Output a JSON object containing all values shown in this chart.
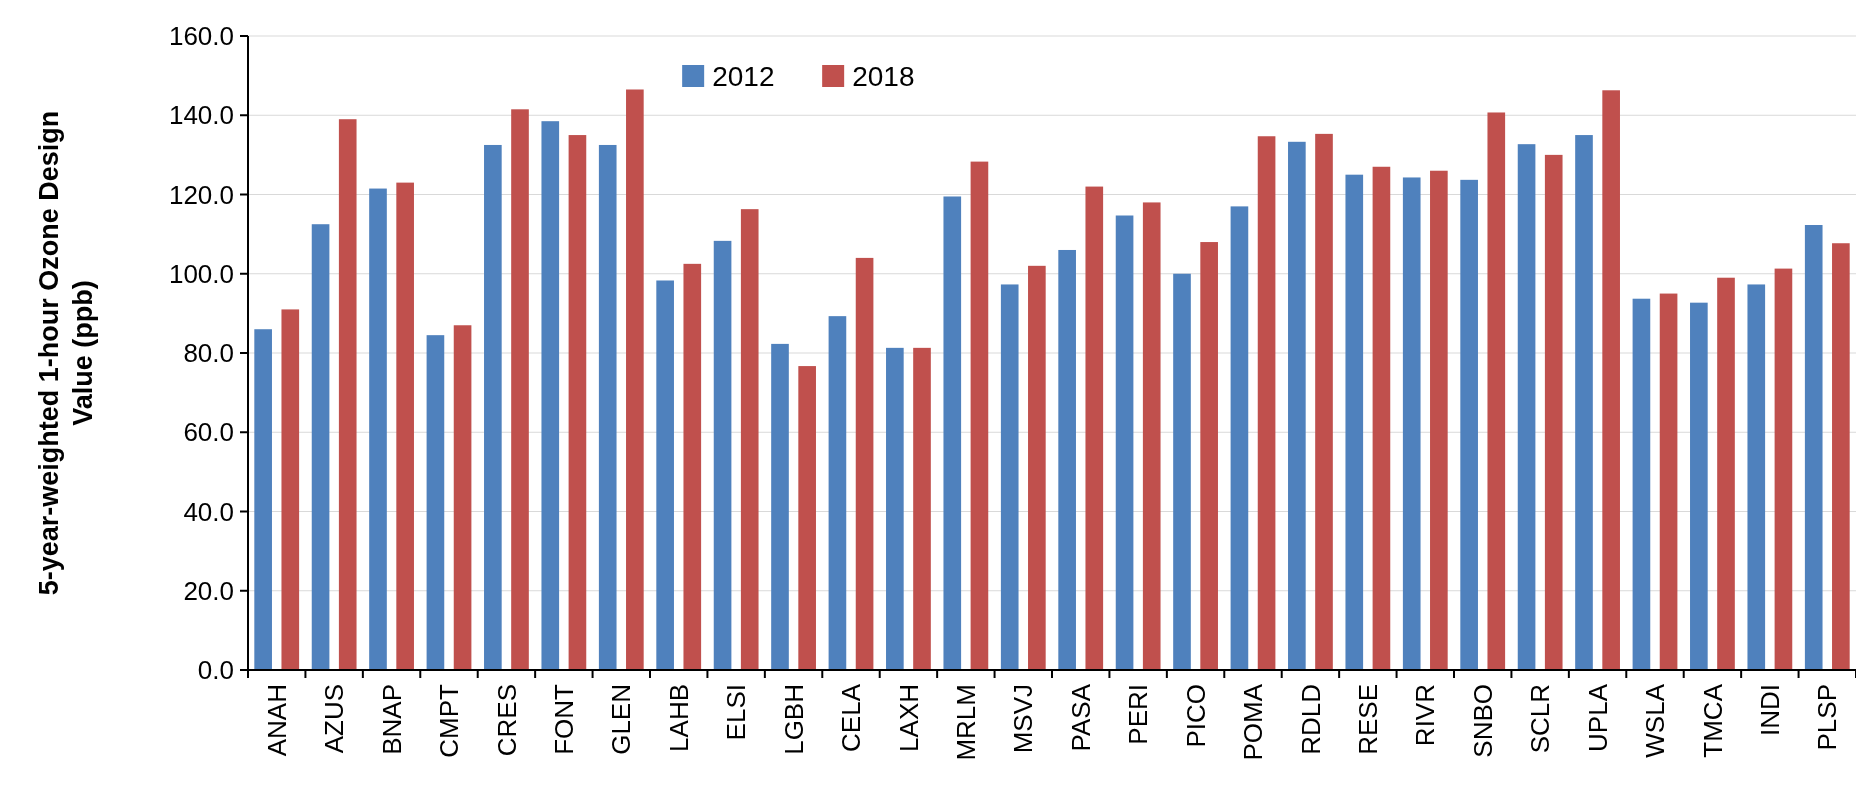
{
  "chart_data": {
    "type": "bar",
    "ylabel": "5-year-weighted 1-hour Ozone Design Value (ppb)",
    "categories": [
      "ANAH",
      "AZUS",
      "BNAP",
      "CMPT",
      "CRES",
      "FONT",
      "GLEN",
      "LAHB",
      "ELSI",
      "LGBH",
      "CELA",
      "LAXH",
      "MRLM",
      "MSVJ",
      "PASA",
      "PERI",
      "PICO",
      "POMA",
      "RDLD",
      "RESE",
      "RIVR",
      "SNBO",
      "SCLR",
      "UPLA",
      "WSLA",
      "TMCA",
      "INDI",
      "PLSP"
    ],
    "series": [
      {
        "name": "2012",
        "color": "#4f81bd",
        "values": [
          86,
          112.5,
          121.5,
          84.5,
          132.5,
          138.5,
          132.5,
          98.3,
          108.3,
          82.3,
          89.3,
          81.3,
          119.5,
          97.3,
          106,
          114.7,
          100,
          117,
          133.3,
          125,
          124.3,
          123.7,
          132.7,
          135,
          93.7,
          92.7,
          97.3,
          112.3
        ]
      },
      {
        "name": "2018",
        "color": "#c0504d",
        "values": [
          91,
          139,
          123,
          87,
          141.5,
          135,
          146.5,
          102.5,
          116.3,
          76.7,
          104,
          81.3,
          128.3,
          102,
          122,
          118,
          108,
          134.7,
          135.3,
          127,
          126,
          140.7,
          130,
          146.3,
          95,
          99,
          101.3,
          107.7
        ]
      }
    ],
    "ylim": [
      0,
      160
    ],
    "yticks": [
      {
        "value": 0,
        "label": "0.0"
      },
      {
        "value": 20,
        "label": "20.0"
      },
      {
        "value": 40,
        "label": "40.0"
      },
      {
        "value": 60,
        "label": "60.0"
      },
      {
        "value": 80,
        "label": "80.0"
      },
      {
        "value": 100,
        "label": "100.0"
      },
      {
        "value": 120,
        "label": "120.0"
      },
      {
        "value": 140,
        "label": "140.0"
      },
      {
        "value": 160,
        "label": "160.0"
      }
    ],
    "grid": "y",
    "legend": "top"
  }
}
